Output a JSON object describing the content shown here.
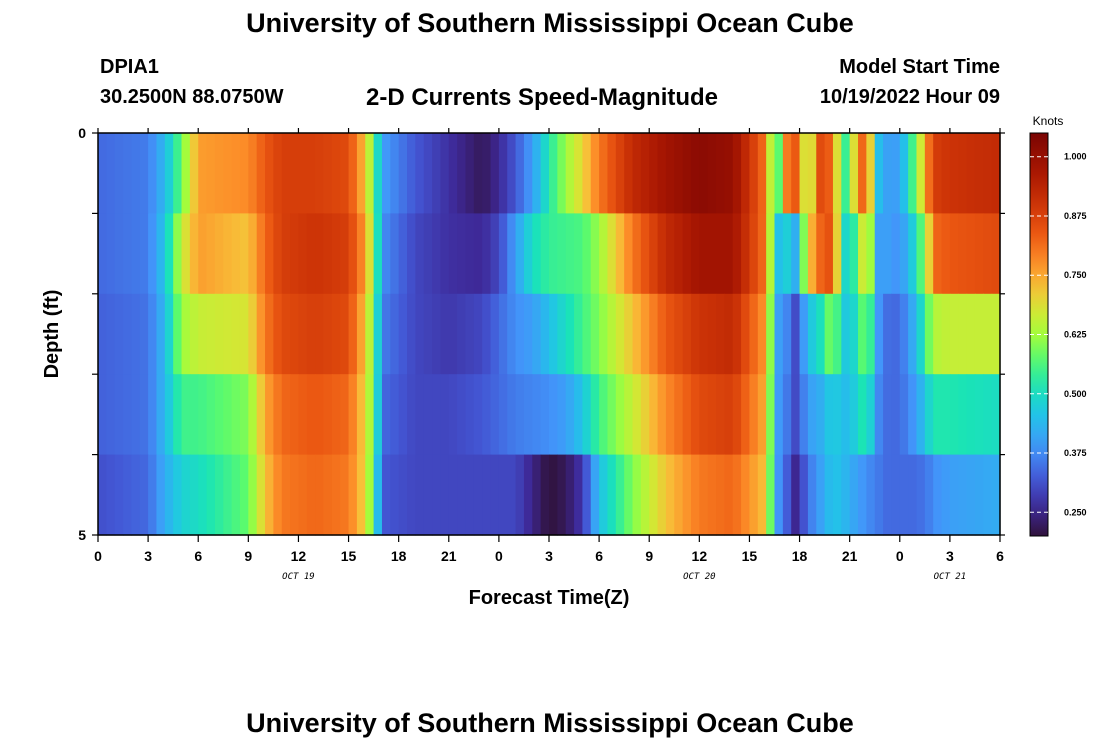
{
  "header": {
    "title": "University of Southern Mississippi Ocean Cube",
    "station_id": "DPIA1",
    "station_coords": "30.2500N  88.0750W",
    "chart_title": "2-D Currents Speed-Magnitude",
    "model_start_label": "Model Start Time",
    "model_start_value": "10/19/2022 Hour 09"
  },
  "footer": {
    "title": "University of Southern Mississippi Ocean Cube"
  },
  "chart_data": {
    "type": "heatmap",
    "title": "2-D Currents Speed-Magnitude",
    "xlabel": "Forecast Time(Z)",
    "ylabel": "Depth (ft)",
    "colorbar_label": "Knots",
    "colorbar_ticks": [
      "0.250",
      "0.375",
      "0.500",
      "0.625",
      "0.750",
      "0.875",
      "1.000"
    ],
    "colorbar_range": [
      0.2,
      1.05
    ],
    "x_tick_labels": [
      "0",
      "3",
      "6",
      "9",
      "12",
      "15",
      "18",
      "21",
      "0",
      "3",
      "6",
      "9",
      "12",
      "15",
      "18",
      "21",
      "0",
      "3",
      "6"
    ],
    "date_labels": [
      {
        "text": "OCT 19",
        "at_hour": 12
      },
      {
        "text": "OCT 20",
        "at_hour": 36
      },
      {
        "text": "OCT 21",
        "at_hour": 51
      }
    ],
    "x_range_hours": [
      0,
      54
    ],
    "y_tick_labels": [
      "0",
      "5"
    ],
    "y_range": [
      0,
      5
    ],
    "rows": 5,
    "keyframes_hours": [
      0,
      3,
      4,
      5,
      6,
      9,
      10,
      11,
      13,
      15,
      16,
      16.6,
      17,
      19,
      21,
      23,
      24,
      25,
      26,
      27,
      28,
      29,
      30,
      32,
      34,
      36,
      38,
      40,
      40.6,
      41,
      41.8,
      42.5,
      43.2,
      44,
      44.6,
      45.5,
      46,
      46.6,
      47.3,
      48,
      49,
      49.7,
      50,
      51,
      54
    ],
    "values": [
      [
        0.34,
        0.36,
        0.44,
        0.58,
        0.76,
        0.78,
        0.84,
        0.88,
        0.88,
        0.86,
        0.72,
        0.55,
        0.4,
        0.32,
        0.27,
        0.22,
        0.26,
        0.32,
        0.4,
        0.52,
        0.62,
        0.7,
        0.8,
        0.92,
        0.98,
        1.02,
        1.0,
        0.8,
        0.45,
        0.78,
        0.84,
        0.6,
        0.86,
        0.82,
        0.5,
        0.76,
        0.88,
        0.46,
        0.4,
        0.4,
        0.6,
        0.8,
        0.88,
        0.9,
        0.92
      ],
      [
        0.34,
        0.36,
        0.46,
        0.66,
        0.76,
        0.72,
        0.82,
        0.88,
        0.9,
        0.88,
        0.76,
        0.58,
        0.38,
        0.3,
        0.27,
        0.26,
        0.3,
        0.4,
        0.5,
        0.54,
        0.55,
        0.56,
        0.62,
        0.8,
        0.92,
        0.98,
        0.98,
        0.8,
        0.42,
        0.5,
        0.42,
        0.7,
        0.82,
        0.86,
        0.48,
        0.55,
        0.78,
        0.4,
        0.4,
        0.38,
        0.5,
        0.68,
        0.82,
        0.84,
        0.86
      ],
      [
        0.33,
        0.35,
        0.44,
        0.62,
        0.66,
        0.68,
        0.8,
        0.86,
        0.88,
        0.86,
        0.72,
        0.55,
        0.36,
        0.3,
        0.28,
        0.3,
        0.34,
        0.38,
        0.4,
        0.45,
        0.5,
        0.55,
        0.6,
        0.72,
        0.84,
        0.9,
        0.92,
        0.76,
        0.4,
        0.4,
        0.3,
        0.45,
        0.5,
        0.62,
        0.46,
        0.5,
        0.64,
        0.4,
        0.34,
        0.34,
        0.44,
        0.58,
        0.64,
        0.66,
        0.66
      ],
      [
        0.33,
        0.35,
        0.44,
        0.55,
        0.55,
        0.6,
        0.75,
        0.82,
        0.84,
        0.82,
        0.7,
        0.55,
        0.34,
        0.3,
        0.3,
        0.32,
        0.34,
        0.36,
        0.37,
        0.38,
        0.4,
        0.46,
        0.55,
        0.66,
        0.78,
        0.86,
        0.88,
        0.74,
        0.4,
        0.38,
        0.3,
        0.4,
        0.42,
        0.48,
        0.44,
        0.48,
        0.55,
        0.38,
        0.34,
        0.34,
        0.4,
        0.48,
        0.52,
        0.52,
        0.5
      ],
      [
        0.31,
        0.34,
        0.42,
        0.48,
        0.5,
        0.58,
        0.72,
        0.8,
        0.82,
        0.8,
        0.7,
        0.52,
        0.32,
        0.3,
        0.3,
        0.3,
        0.3,
        0.3,
        0.25,
        0.2,
        0.22,
        0.28,
        0.45,
        0.6,
        0.72,
        0.8,
        0.82,
        0.72,
        0.4,
        0.36,
        0.25,
        0.35,
        0.4,
        0.46,
        0.44,
        0.4,
        0.38,
        0.36,
        0.34,
        0.34,
        0.34,
        0.36,
        0.38,
        0.4,
        0.42
      ]
    ]
  }
}
